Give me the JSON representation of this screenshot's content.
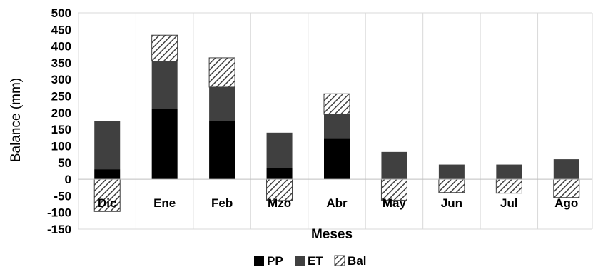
{
  "chart_data": {
    "type": "bar",
    "stacked": true,
    "categories": [
      "Dic",
      "Ene",
      "Feb",
      "Mzo",
      "Abr",
      "May",
      "Jun",
      "Jul",
      "Ago"
    ],
    "series": [
      {
        "name": "PP",
        "values": [
          30,
          212,
          175,
          33,
          122,
          0,
          0,
          0,
          0
        ],
        "color": "#000000",
        "pattern": "solid"
      },
      {
        "name": "ET",
        "values": [
          145,
          143,
          102,
          107,
          73,
          82,
          44,
          44,
          60
        ],
        "color": "#404040",
        "pattern": "solid"
      },
      {
        "name": "Bal",
        "values": [
          -97,
          78,
          88,
          -64,
          62,
          -63,
          -40,
          -42,
          -55
        ],
        "color": "#404040",
        "pattern": "hatch"
      }
    ],
    "title": "",
    "xlabel": "Meses",
    "ylabel": "Balance (mm)",
    "ylim": [
      -150,
      500
    ],
    "yticks": [
      500,
      450,
      400,
      350,
      300,
      250,
      200,
      150,
      100,
      50,
      0,
      -50,
      -100,
      -150
    ],
    "grid": "vertical",
    "legend": "bottom"
  }
}
